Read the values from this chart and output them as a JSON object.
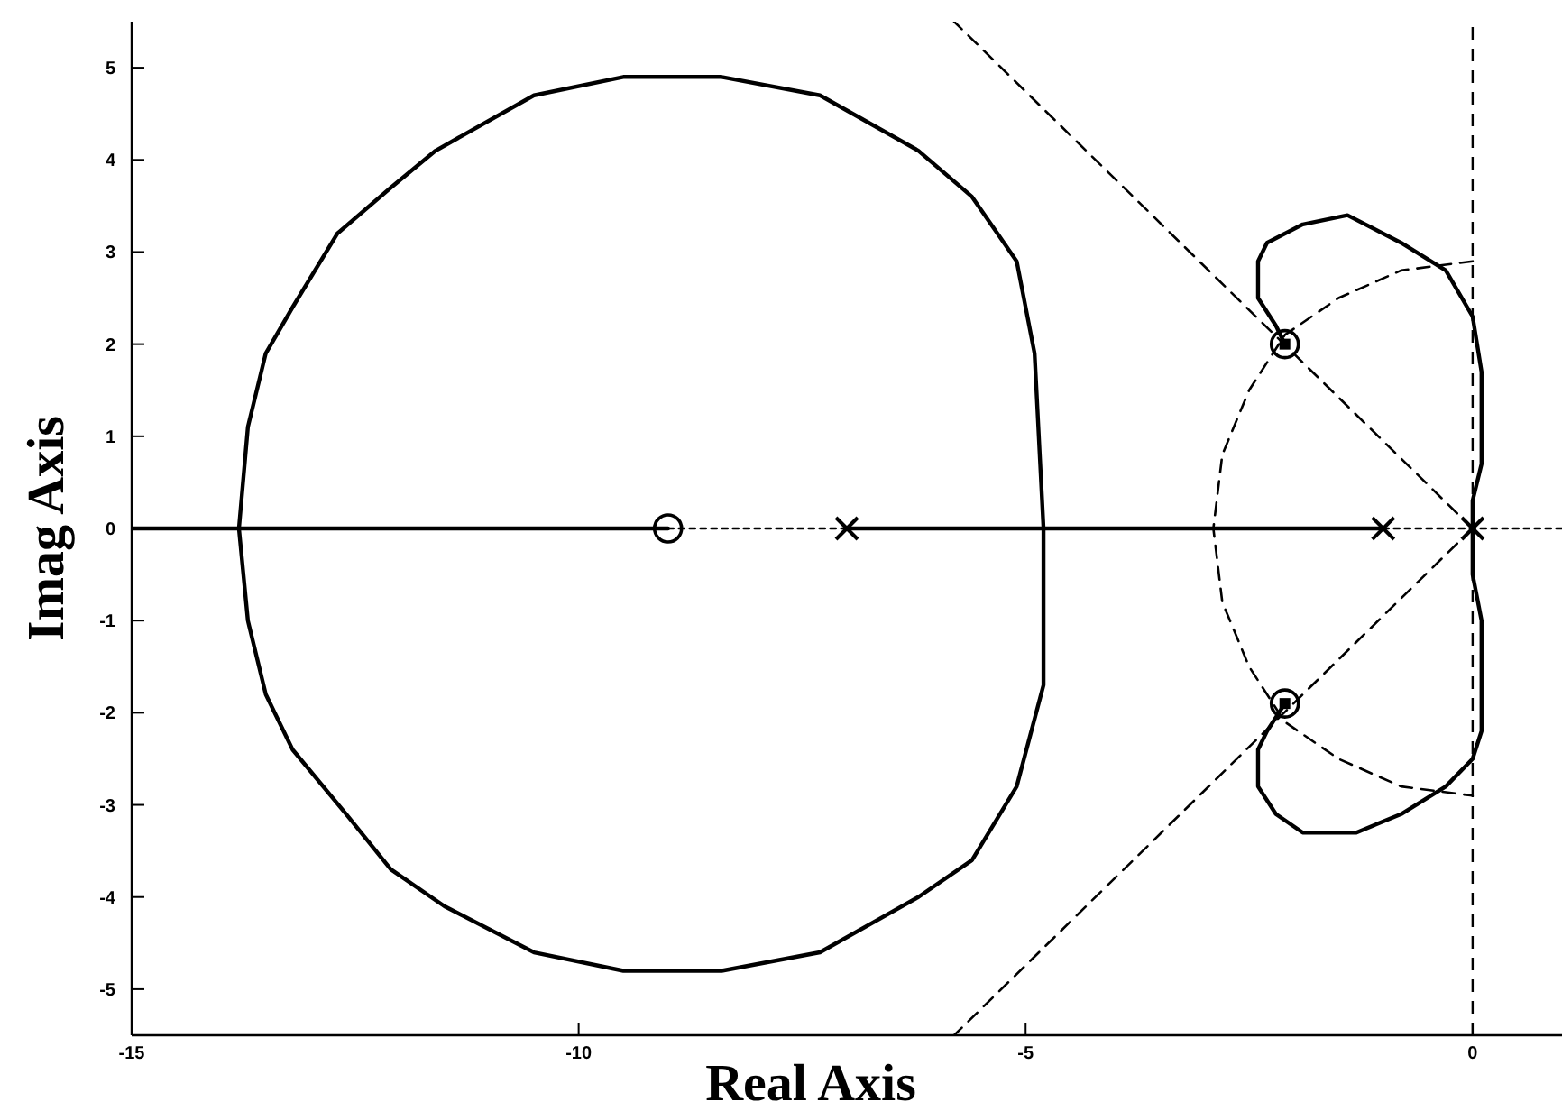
{
  "chart_data": {
    "type": "line",
    "xlabel": "Real Axis",
    "ylabel": "Imag Axis",
    "xlim": [
      -15,
      1
    ],
    "xticks": [
      -15,
      -10,
      -5,
      0
    ],
    "ylim": [
      -5.5,
      5.5
    ],
    "yticks": [
      -5,
      -4,
      -3,
      -2,
      -1,
      0,
      1,
      2,
      3,
      4,
      5
    ],
    "ref_lines": [
      {
        "axis": "x",
        "value": 0,
        "color": "#000000",
        "line_style": "dashed"
      }
    ],
    "series": [
      {
        "type": "line",
        "color": "#000000",
        "line_style": "dashed",
        "x": [
          0,
          -5.8
        ],
        "values": [
          0,
          5.5
        ]
      },
      {
        "type": "line",
        "color": "#000000",
        "line_style": "dashed",
        "x": [
          0,
          -5.8
        ],
        "values": [
          0,
          -5.5
        ]
      },
      {
        "type": "line",
        "color": "#000000",
        "line_style": "dashed",
        "x": [
          0,
          -0.8,
          -1.5,
          -2.1,
          -2.5,
          -2.8,
          -2.9,
          -2.8,
          -2.5,
          -2.1,
          -1.5,
          -0.8,
          0
        ],
        "values": [
          2.9,
          2.8,
          2.5,
          2.1,
          1.5,
          0.8,
          0,
          -0.8,
          -1.5,
          -2.1,
          -2.5,
          -2.8,
          -2.9
        ]
      },
      {
        "type": "line",
        "color": "#000000",
        "line_style": "dotted",
        "x": [
          -9,
          -7
        ],
        "values": [
          0,
          0
        ]
      },
      {
        "type": "line",
        "color": "#000000",
        "line_style": "dotted",
        "x": [
          -1,
          1
        ],
        "values": [
          0,
          0
        ]
      },
      {
        "type": "line",
        "color": "#000000",
        "line_style": "solid",
        "x": [
          -7,
          -4.8,
          -4.9,
          -5.1,
          -5.6,
          -6.2,
          -7.3,
          -8.4,
          -9.5,
          -10.5,
          -11.6,
          -12.1,
          -12.7,
          -13.2,
          -13.5,
          -13.7,
          -13.8,
          -9
        ],
        "values": [
          0,
          0,
          1.9,
          2.9,
          3.6,
          4.1,
          4.7,
          4.9,
          4.9,
          4.7,
          4.1,
          3.7,
          3.2,
          2.4,
          1.9,
          1.1,
          0,
          0
        ]
      },
      {
        "type": "line",
        "color": "#000000",
        "line_style": "solid",
        "x": [
          -1,
          -4.8,
          -4.8,
          -5.1,
          -5.6,
          -6.2,
          -7.3,
          -8.4,
          -9.5,
          -10.5,
          -11.5,
          -12.1,
          -12.6,
          -13.2,
          -13.5,
          -13.7,
          -13.8,
          -15
        ],
        "values": [
          0,
          0,
          -1.7,
          -2.8,
          -3.6,
          -4.0,
          -4.6,
          -4.8,
          -4.8,
          -4.6,
          -4.1,
          -3.7,
          -3.1,
          -2.4,
          -1.8,
          -1.0,
          0,
          0
        ]
      },
      {
        "type": "line",
        "color": "#000000",
        "line_style": "solid",
        "x": [
          0,
          0,
          0.1,
          0.1,
          0.1,
          0,
          -0.3,
          -0.8,
          -1.4,
          -1.9,
          -2.3,
          -2.4,
          -2.4,
          -2.2,
          -2.1
        ],
        "values": [
          0,
          0.3,
          0.7,
          1.3,
          1.7,
          2.3,
          2.8,
          3.1,
          3.4,
          3.3,
          3.1,
          2.9,
          2.5,
          2.2,
          2.0
        ]
      },
      {
        "type": "line",
        "color": "#000000",
        "line_style": "solid",
        "x": [
          0,
          0,
          0.1,
          0.1,
          0.1,
          0,
          -0.3,
          -0.8,
          -1.3,
          -1.9,
          -2.2,
          -2.4,
          -2.4,
          -2.3,
          -2.1
        ],
        "values": [
          0,
          -0.5,
          -1.0,
          -1.4,
          -2.2,
          -2.5,
          -2.8,
          -3.1,
          -3.3,
          -3.3,
          -3.1,
          -2.8,
          -2.4,
          -2.2,
          -1.9
        ]
      },
      {
        "type": "scatter",
        "color": "#000000",
        "marker": "cross",
        "x": [
          -7,
          -1,
          0
        ],
        "values": [
          0,
          0,
          0
        ]
      },
      {
        "type": "scatter",
        "color": "#000000",
        "marker": "circle",
        "x": [
          -9,
          -2.1,
          -2.1
        ],
        "values": [
          0,
          2.0,
          -1.9
        ]
      },
      {
        "type": "scatter",
        "color": "#000000",
        "marker": "square",
        "x": [
          -2.1,
          -2.1
        ],
        "values": [
          2.0,
          -1.9
        ]
      }
    ]
  }
}
